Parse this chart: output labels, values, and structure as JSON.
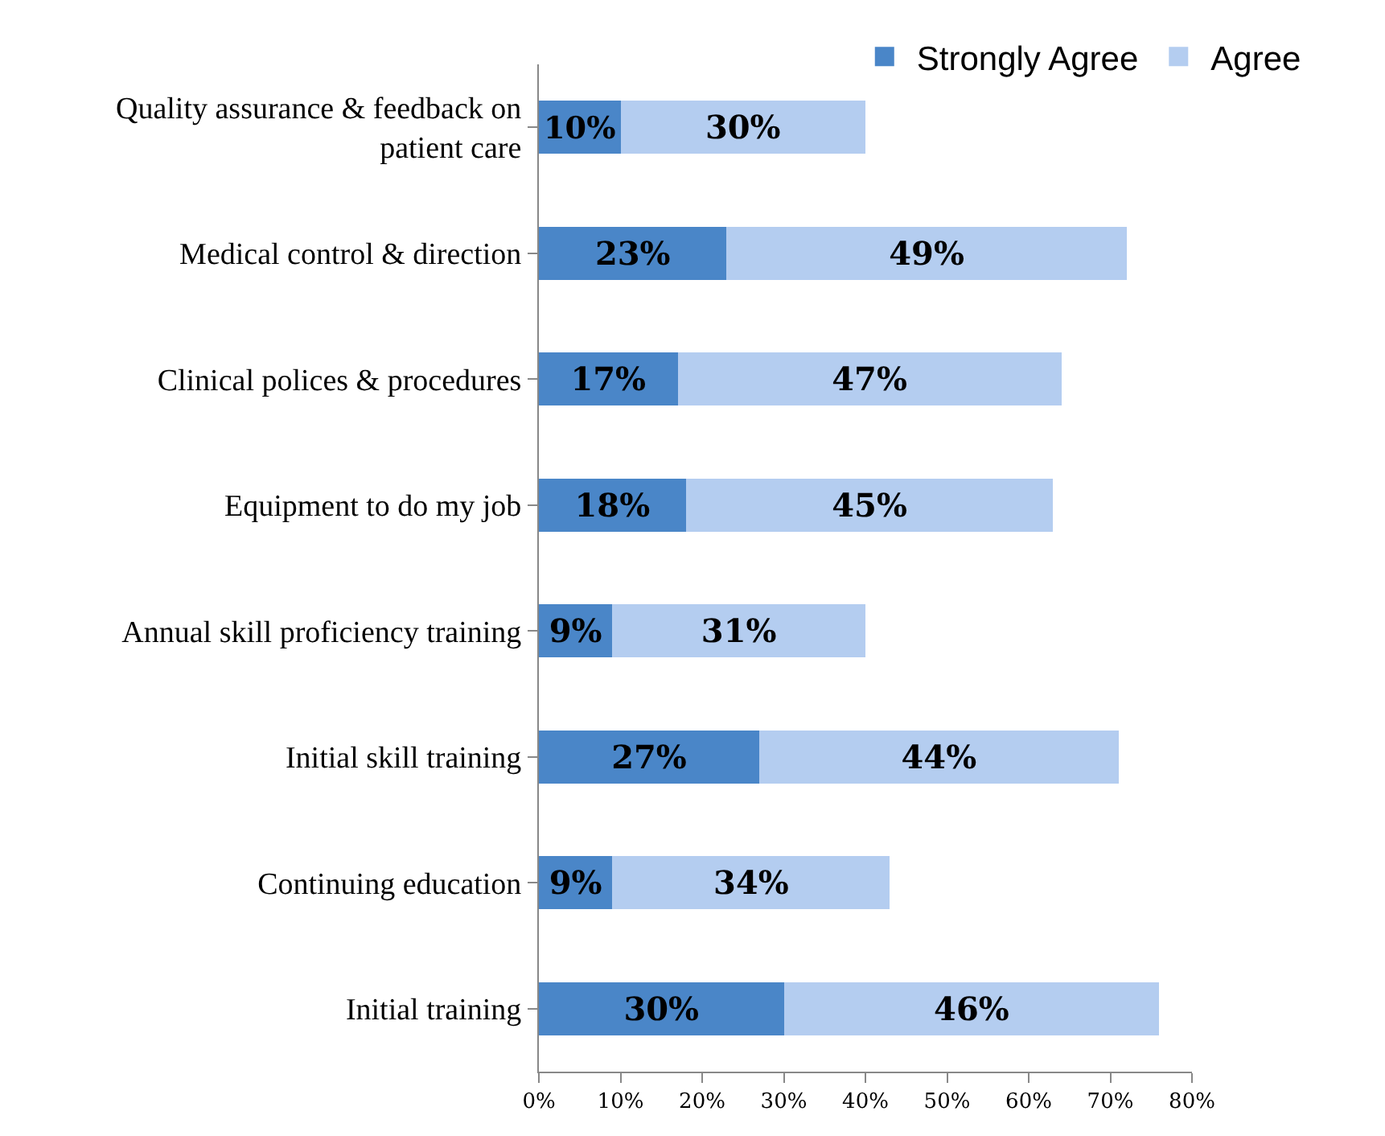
{
  "chart_data": {
    "type": "bar",
    "orientation": "horizontal",
    "stacked": true,
    "categories": [
      "Quality assurance & feedback on patient care",
      "Medical control & direction",
      "Clinical polices & procedures",
      "Equipment to do my job",
      "Annual skill proficiency training",
      "Initial skill training",
      "Continuing education",
      "Initial training"
    ],
    "series": [
      {
        "name": "Strongly Agree",
        "color": "#4a86c8",
        "values": [
          10,
          23,
          17,
          18,
          9,
          27,
          9,
          30
        ],
        "value_labels": [
          "10%",
          "23%",
          "17%",
          "18%",
          "9%",
          "27%",
          "9%",
          "30%"
        ]
      },
      {
        "name": "Agree",
        "color": "#b4cdf0",
        "values": [
          30,
          49,
          47,
          45,
          31,
          44,
          34,
          46
        ],
        "value_labels": [
          "30%",
          "49%",
          "47%",
          "45%",
          "31%",
          "44%",
          "34%",
          "46%"
        ]
      }
    ],
    "xlim": [
      0,
      80
    ],
    "xticks": [
      {
        "value": 0,
        "label": "0%"
      },
      {
        "value": 10,
        "label": "10%"
      },
      {
        "value": 20,
        "label": "20%"
      },
      {
        "value": 30,
        "label": "30%"
      },
      {
        "value": 40,
        "label": "40%"
      },
      {
        "value": 50,
        "label": "50%"
      },
      {
        "value": 60,
        "label": "60%"
      },
      {
        "value": 70,
        "label": "70%"
      },
      {
        "value": 80,
        "label": "80%"
      }
    ],
    "legend": "top right"
  }
}
